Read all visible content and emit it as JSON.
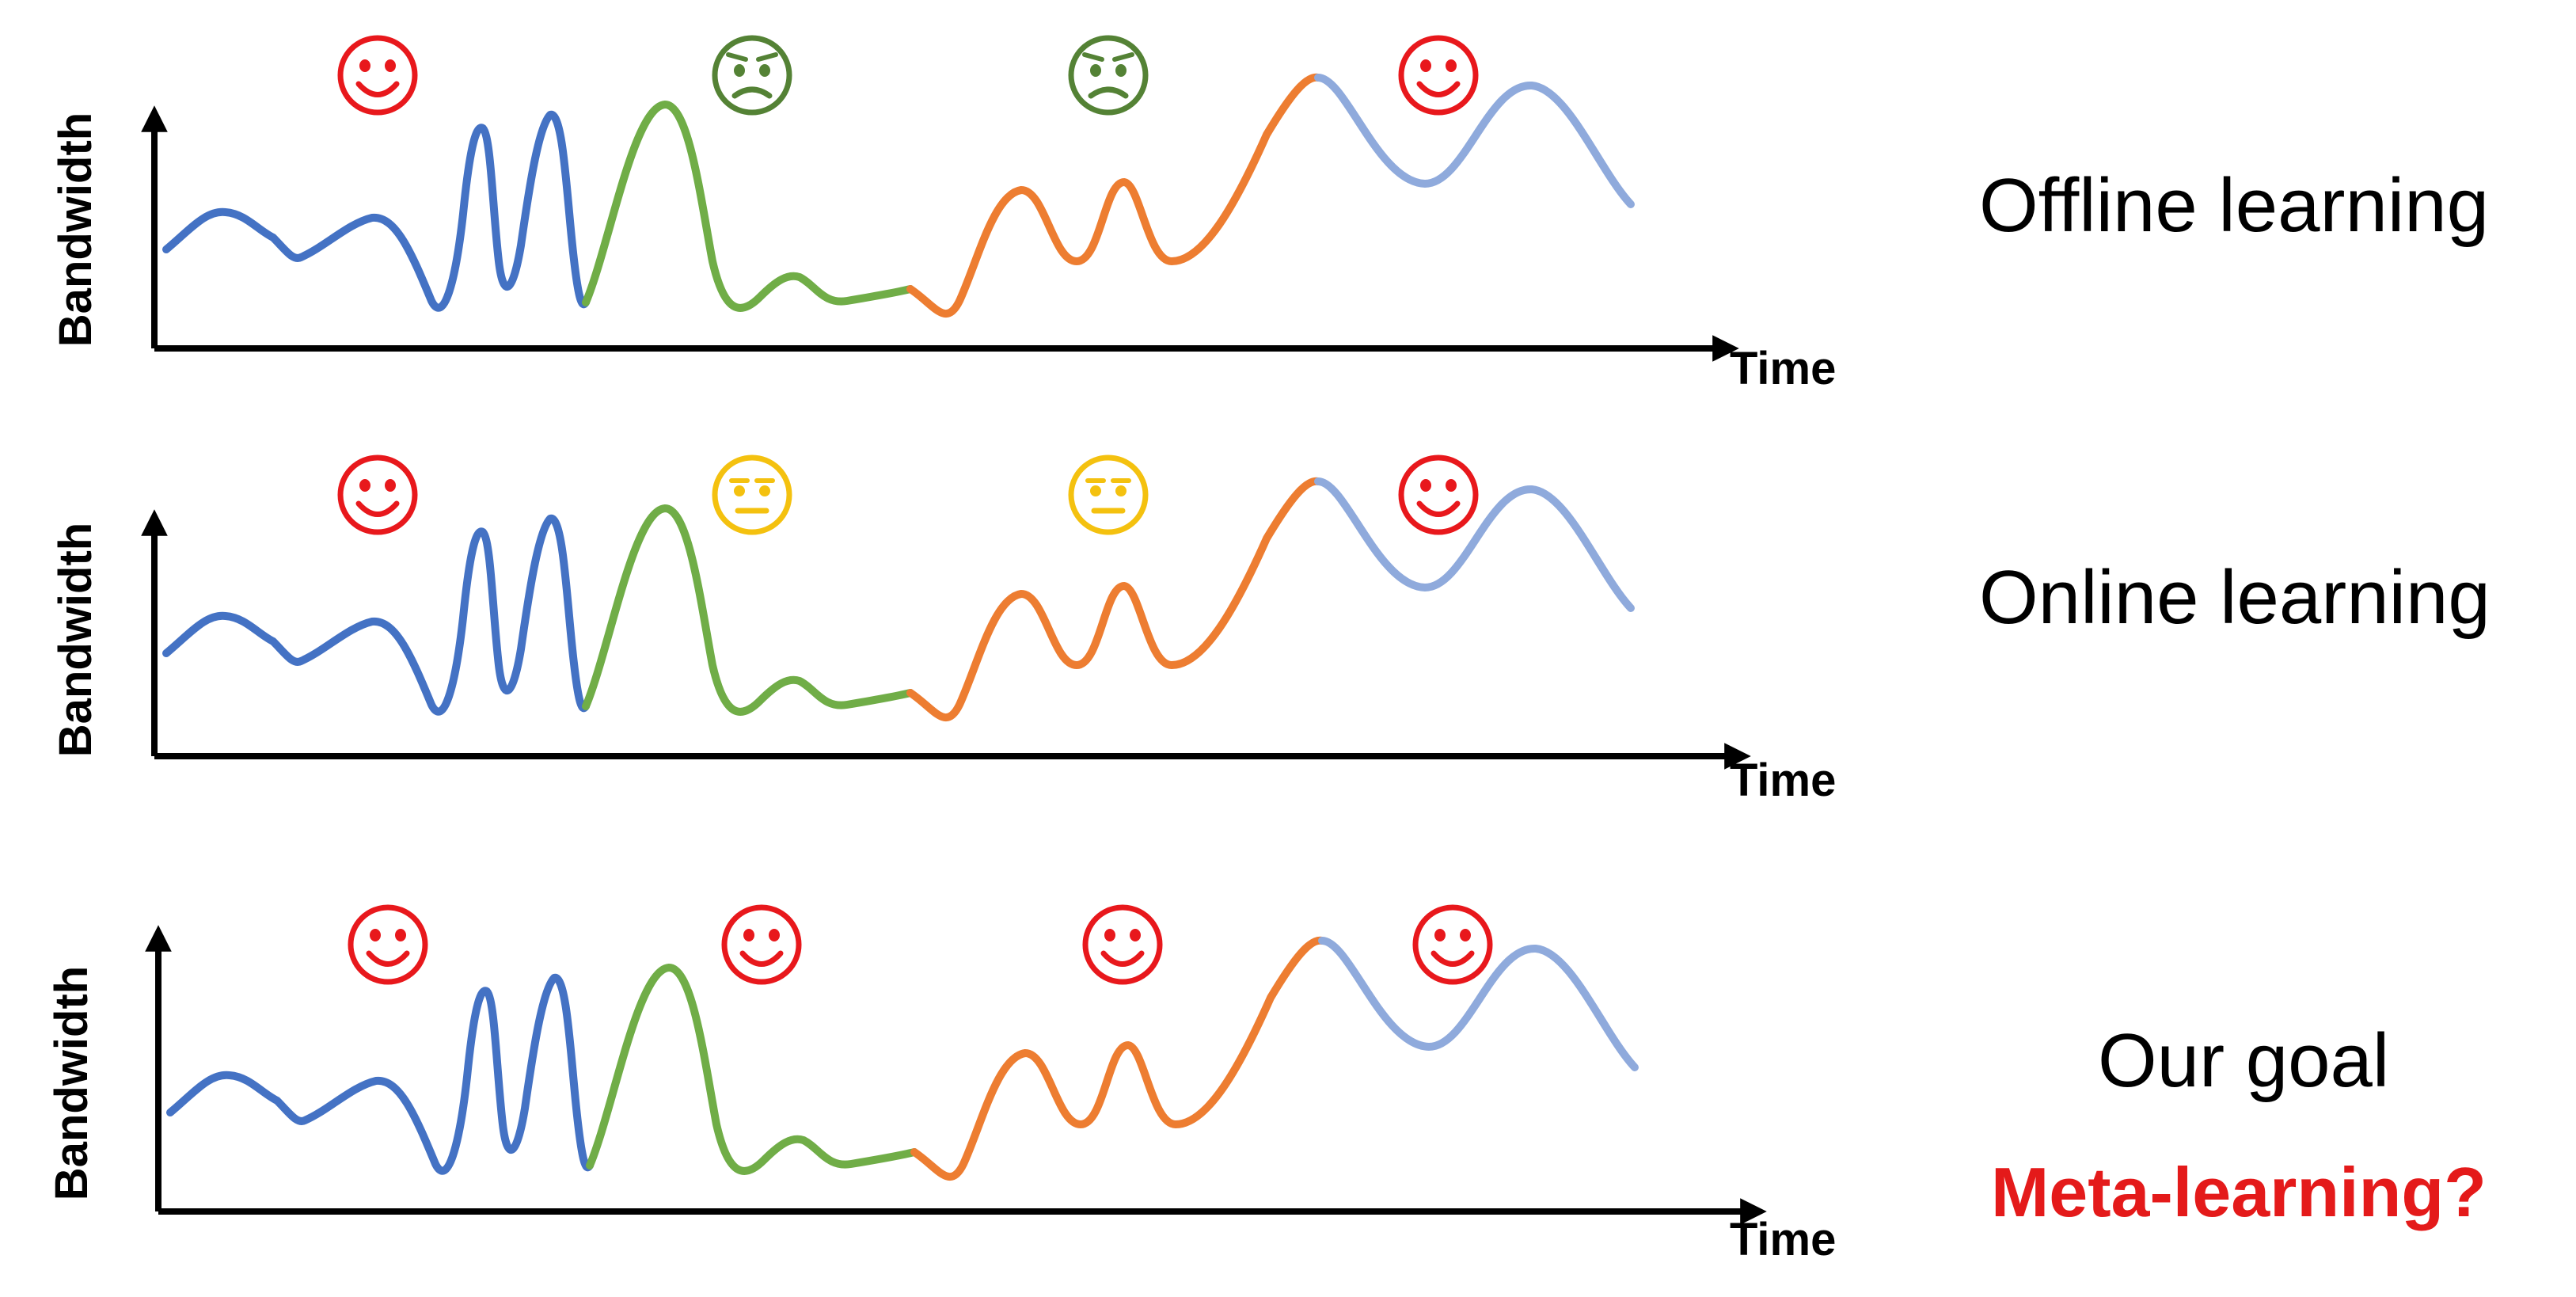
{
  "axes": {
    "y_label": "Bandwidth",
    "x_label": "Time"
  },
  "series_colors": {
    "segment1": "#4472c4",
    "segment2": "#70ad47",
    "segment3": "#ed7d31",
    "segment4": "#8faadc"
  },
  "face_colors": {
    "happy": "#e8181c",
    "sad": "#548235",
    "neutral": "#f4c10f"
  },
  "panels": [
    {
      "caption": "Offline learning",
      "accent": "",
      "faces": [
        "happy",
        "sad",
        "sad",
        "happy"
      ]
    },
    {
      "caption": "Online learning",
      "accent": "",
      "faces": [
        "happy",
        "neutral",
        "neutral",
        "happy"
      ]
    },
    {
      "caption": "Our goal",
      "accent": "Meta-learning?",
      "faces": [
        "happy",
        "happy",
        "happy",
        "happy"
      ]
    }
  ]
}
